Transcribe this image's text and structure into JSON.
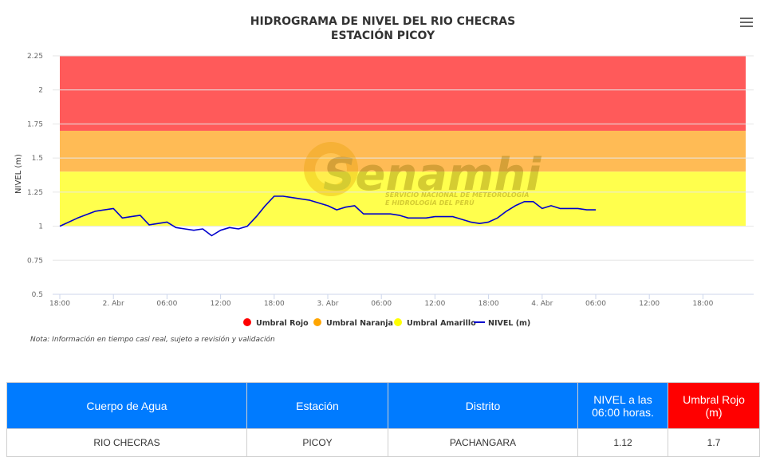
{
  "title": {
    "line1": "HIDROGRAMA DE NIVEL DEL RIO CHECRAS",
    "line2": "ESTACIÓN PICOY"
  },
  "menu": {
    "icon": "hamburger-menu-icon"
  },
  "watermark": {
    "brand": "Senamhi",
    "subtitle_line1": "SERVICIO NACIONAL DE METEOROLOGÍA",
    "subtitle_line2": "E HIDROLOGÍA DEL PERÚ"
  },
  "note": "Nota: Información en tiempo casi real, sujeto a revisión y validación",
  "colors": {
    "rojo": "#ff5a5a",
    "naranja": "#ffbb55",
    "amarillo": "#ffff4d",
    "nivel": "#0000cc",
    "table_header": "#007bff",
    "table_header_red": "#ff0000"
  },
  "chart_data": {
    "type": "line",
    "title": "HIDROGRAMA DE NIVEL DEL RIO CHECRAS",
    "subtitle": "ESTACIÓN PICOY",
    "ylabel": "NIVEL (m)",
    "xlabel": "",
    "ylim": [
      0.5,
      2.25
    ],
    "yticks": [
      "0.5",
      "0.75",
      "1",
      "1.25",
      "1.5",
      "1.75",
      "2",
      "2.25"
    ],
    "xticks": [
      "18:00",
      "2. Abr",
      "06:00",
      "12:00",
      "18:00",
      "3. Abr",
      "06:00",
      "12:00",
      "18:00",
      "4. Abr",
      "06:00",
      "12:00",
      "18:00"
    ],
    "grid": true,
    "legend_position": "bottom",
    "bands": [
      {
        "name": "Umbral Rojo",
        "from": 1.7,
        "to": 2.25,
        "color": "#ff5a5a"
      },
      {
        "name": "Umbral Naranja",
        "from": 1.4,
        "to": 1.7,
        "color": "#ffbb55"
      },
      {
        "name": "Umbral Amarillo",
        "from": 1.0,
        "to": 1.4,
        "color": "#ffff4d"
      }
    ],
    "legend": [
      {
        "name": "Umbral Rojo",
        "color": "#ff0000",
        "kind": "dot"
      },
      {
        "name": "Umbral Naranja",
        "color": "#ffa500",
        "kind": "dot"
      },
      {
        "name": "Umbral Amarillo",
        "color": "#ffff00",
        "kind": "dot"
      },
      {
        "name": "NIVEL (m)",
        "color": "#0000cc",
        "kind": "line"
      }
    ],
    "series": [
      {
        "name": "NIVEL (m)",
        "x_hours_from_first_tick": [
          0,
          2,
          4,
          6,
          7,
          8,
          9,
          10,
          11,
          12,
          13,
          14,
          15,
          16,
          17,
          18,
          19,
          20,
          21,
          22,
          23,
          24,
          25,
          26,
          27,
          28,
          29,
          30,
          31,
          32,
          33,
          34,
          35,
          36,
          37,
          38,
          39,
          40,
          41,
          42,
          43,
          44,
          45,
          46,
          47,
          48,
          49,
          50,
          51,
          52,
          53,
          54,
          55,
          56,
          57,
          58,
          59,
          60
        ],
        "values": [
          1.0,
          1.06,
          1.11,
          1.13,
          1.06,
          1.07,
          1.08,
          1.01,
          1.02,
          1.03,
          0.99,
          0.98,
          0.97,
          0.98,
          0.93,
          0.97,
          0.99,
          0.98,
          1.0,
          1.07,
          1.15,
          1.22,
          1.22,
          1.21,
          1.2,
          1.19,
          1.17,
          1.15,
          1.12,
          1.14,
          1.15,
          1.09,
          1.09,
          1.09,
          1.09,
          1.08,
          1.06,
          1.06,
          1.06,
          1.07,
          1.07,
          1.07,
          1.05,
          1.03,
          1.02,
          1.03,
          1.06,
          1.11,
          1.15,
          1.18,
          1.18,
          1.13,
          1.15,
          1.13,
          1.13,
          1.13,
          1.12,
          1.12
        ]
      }
    ]
  },
  "table": {
    "headers": [
      "Cuerpo de Agua",
      "Estación",
      "Distrito",
      "NIVEL a las 06:00 horas.",
      "Umbral Rojo (m)"
    ],
    "row": [
      "RIO CHECRAS",
      "PICOY",
      "PACHANGARA",
      "1.12",
      "1.7"
    ]
  }
}
